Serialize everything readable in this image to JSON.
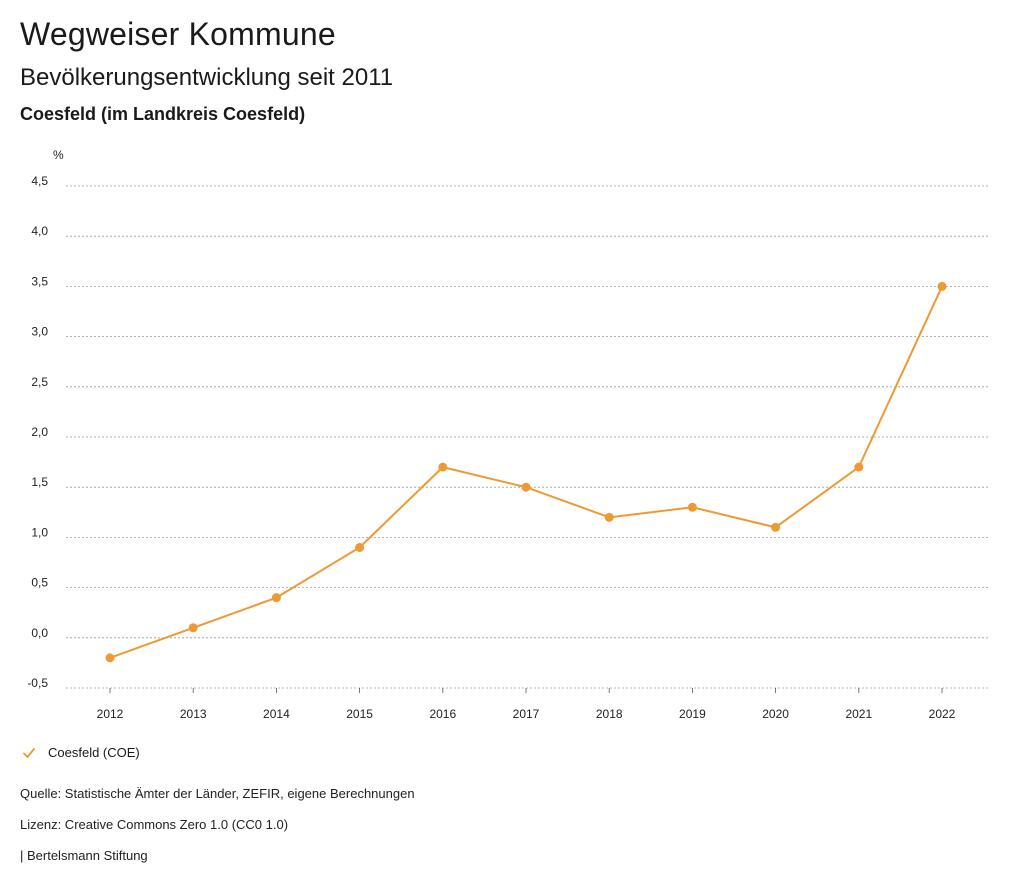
{
  "header": {
    "title": "Wegweiser Kommune",
    "subtitle": "Bevölkerungsentwicklung seit 2011",
    "region": "Coesfeld (im Landkreis Coesfeld)"
  },
  "chart_data": {
    "type": "line",
    "title": "Bevölkerungsentwicklung seit 2011",
    "ylabel": "%",
    "xlabel": "",
    "x": [
      "2012",
      "2013",
      "2014",
      "2015",
      "2016",
      "2017",
      "2018",
      "2019",
      "2020",
      "2021",
      "2022"
    ],
    "ylim": [
      -0.5,
      4.5
    ],
    "yticks": [
      -0.5,
      0.0,
      0.5,
      1.0,
      1.5,
      2.0,
      2.5,
      3.0,
      3.5,
      4.0,
      4.5
    ],
    "ytick_labels": [
      "-0,5",
      "0,0",
      "0,5",
      "1,0",
      "1,5",
      "2,0",
      "2,5",
      "3,0",
      "3,5",
      "4,0",
      "4,5"
    ],
    "grid": true,
    "legend_position": "bottom-left",
    "series": [
      {
        "name": "Coesfeld (COE)",
        "color": "#ee9933",
        "values": [
          -0.2,
          0.1,
          0.4,
          0.9,
          1.7,
          1.5,
          1.2,
          1.3,
          1.1,
          1.7,
          3.5
        ]
      }
    ]
  },
  "legend": {
    "label": "Coesfeld (COE)",
    "icon": "check-icon",
    "color": "#ee9933"
  },
  "footer": {
    "source": "Quelle: Statistische Ämter der Länder, ZEFIR, eigene Berechnungen",
    "license": "Lizenz: Creative Commons Zero 1.0 (CC0 1.0)",
    "publisher": "| Bertelsmann Stiftung"
  }
}
